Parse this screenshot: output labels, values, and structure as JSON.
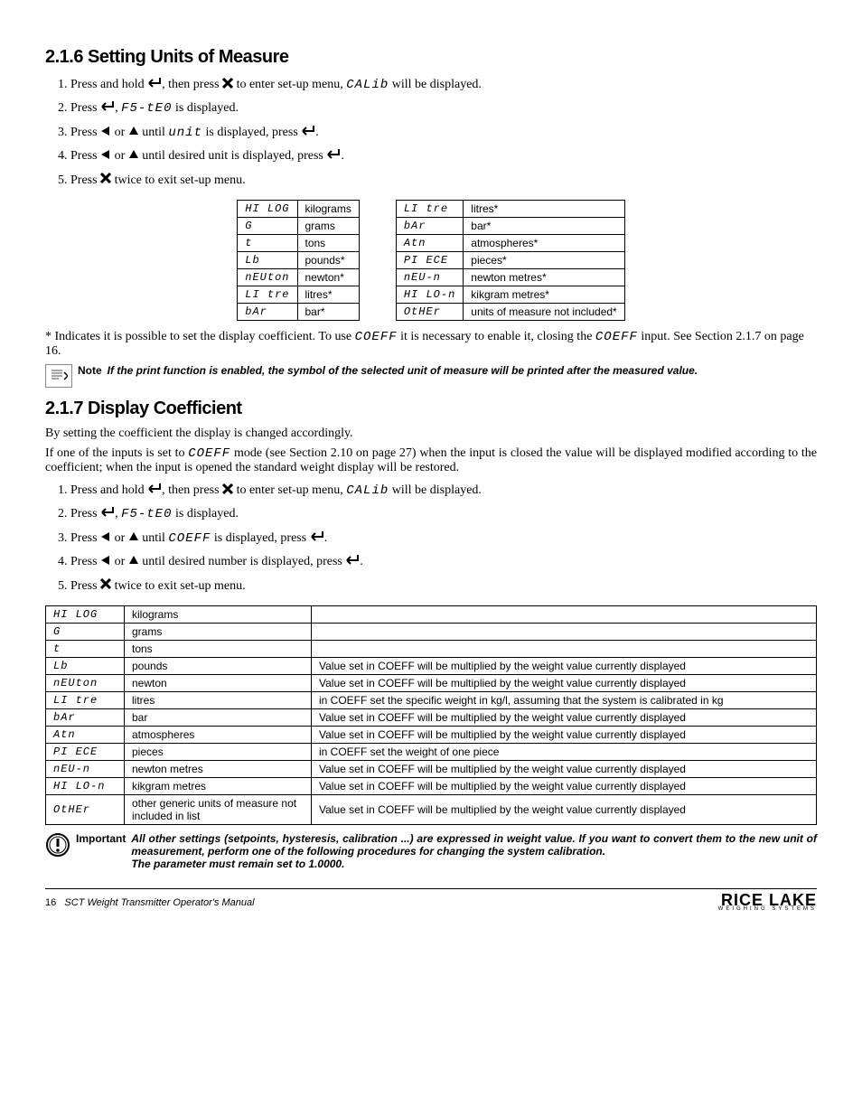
{
  "section216": {
    "heading": "2.1.6  Setting Units of Measure",
    "steps": [
      {
        "pre": "Press and hold ",
        "icon": "enter",
        "mid1": ", then press ",
        "icon2": "x",
        "mid2": " to enter set-up menu, ",
        "seg": "CALib",
        "post": " will be displayed."
      },
      {
        "pre": "Press ",
        "icon": "enter",
        "mid1": ", ",
        "seg": "F5-tE0",
        "post": " is displayed."
      },
      {
        "pre": "Press ",
        "icon": "left",
        "mid1": " or ",
        "icon2": "up",
        "mid2": " until ",
        "seg": "unit",
        "mid3": " is displayed, press ",
        "icon3": "enter",
        "post": "."
      },
      {
        "pre": "Press ",
        "icon": "left",
        "mid1": " or ",
        "icon2": "up",
        "mid2": " until desired unit is displayed, press ",
        "icon3": "enter",
        "post": "."
      },
      {
        "pre": "Press ",
        "icon": "x",
        "post": "  twice to exit set-up menu."
      }
    ],
    "tableLeft": [
      [
        "HI LOG",
        "kilograms"
      ],
      [
        "G",
        "grams"
      ],
      [
        "t",
        "tons"
      ],
      [
        "Lb",
        "pounds*"
      ],
      [
        "nEUton",
        "newton*"
      ],
      [
        "LI tre",
        "litres*"
      ],
      [
        "bAr",
        "bar*"
      ]
    ],
    "tableRight": [
      [
        "LI tre",
        "litres*"
      ],
      [
        "bAr",
        "bar*"
      ],
      [
        "Atn",
        "atmospheres*"
      ],
      [
        "PI ECE",
        "pieces*"
      ],
      [
        "nEU-n",
        "newton metres*"
      ],
      [
        "HI LO-n",
        "kikgram metres*"
      ],
      [
        "OtHEr",
        "units of measure not included*"
      ]
    ],
    "footnotePre": "* Indicates it is possible to set the display coefficient. To use ",
    "footnoteSeg1": "COEFF",
    "footnoteMid": " it is necessary to enable it, closing the ",
    "footnoteSeg2": "COEFF",
    "footnotePost": " input. See Section 2.1.7 on page 16.",
    "noteLabel": "Note",
    "noteText": "If the print function is enabled, the symbol of the selected unit of measure will be printed after the measured value."
  },
  "section217": {
    "heading": "2.1.7  Display Coefficient",
    "para1": "By setting the coefficient the display is changed accordingly.",
    "para2a": "If one of the inputs is set to ",
    "para2seg": "COEFF",
    "para2b": " mode (see Section 2.10 on page 27) when the input is closed the value will be displayed modified according to the coefficient; when the input is opened the standard weight display will be restored.",
    "steps": [
      {
        "pre": "Press and hold ",
        "icon": "enter",
        "mid1": ", then press ",
        "icon2": "x",
        "mid2": " to enter set-up menu, ",
        "seg": "CALib",
        "post": " will be displayed."
      },
      {
        "pre": "Press ",
        "icon": "enter",
        "mid1": ", ",
        "seg": "F5-tE0",
        "post": " is displayed."
      },
      {
        "pre": "Press ",
        "icon": "left",
        "mid1": " or ",
        "icon2": "up",
        "mid2": " until ",
        "seg": "COEFF",
        "mid3": " is displayed, press ",
        "icon3": "enter",
        "post": "."
      },
      {
        "pre": "Press ",
        "icon": "left",
        "mid1": " or ",
        "icon2": "up",
        "mid2": " until desired number is displayed, press ",
        "icon3": "enter",
        "post": "."
      },
      {
        "pre": "Press ",
        "icon": "x",
        "post": "  twice to exit set-up menu."
      }
    ],
    "bigTable": [
      [
        "HI LOG",
        "kilograms",
        ""
      ],
      [
        "G",
        "grams",
        ""
      ],
      [
        "t",
        "tons",
        ""
      ],
      [
        "Lb",
        "pounds",
        "Value set in COEFF will be multiplied by the weight value currently displayed"
      ],
      [
        "nEUton",
        "newton",
        "Value set in COEFF will be multiplied by the weight value currently displayed"
      ],
      [
        "LI tre",
        "litres",
        "in COEFF set the specific weight in kg/l, assuming that the system is calibrated in kg"
      ],
      [
        "bAr",
        "bar",
        "Value set in COEFF will be multiplied by the weight value currently displayed"
      ],
      [
        "Atn",
        "atmospheres",
        "Value set in COEFF will be multiplied by the weight value currently displayed"
      ],
      [
        "PI ECE",
        "pieces",
        "in COEFF set the weight of one piece"
      ],
      [
        "nEU-n",
        "newton metres",
        "Value set in COEFF will be multiplied by the weight value currently displayed"
      ],
      [
        "HI LO-n",
        "kikgram metres",
        "Value set in COEFF will be multiplied by the weight value currently displayed"
      ],
      [
        "OtHEr",
        "other generic units of measure not included in list",
        "Value set in COEFF will be multiplied by the weight value currently displayed"
      ]
    ],
    "importantLabel": "Important",
    "importantText1": "All other settings (setpoints, hysteresis, calibration ...) are expressed in weight value. If you want to convert them to the new unit of measurement, perform one of the following procedures for changing the system calibration.",
    "importantText2": "The parameter must remain set to 1.0000."
  },
  "footer": {
    "page": "16",
    "title": "SCT Weight Transmitter  Operator's Manual",
    "logoMain": "RICE LAKE",
    "logoSub": "WEIGHING SYSTEMS"
  },
  "icons": {
    "enter": "enter-icon",
    "x": "x-icon",
    "left": "left-icon",
    "up": "up-icon"
  }
}
